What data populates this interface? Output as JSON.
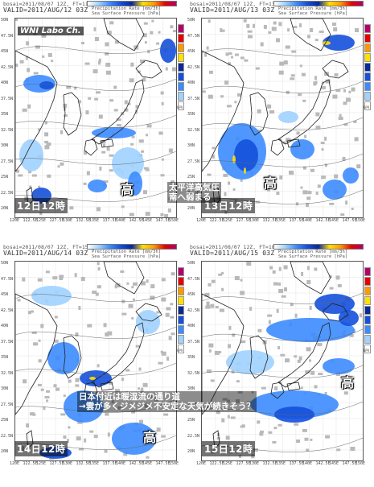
{
  "header": {
    "colorbar_title": "Precipitation Rate [mm/3h]",
    "contour_title": "Sea Surface Pressure [hPa]",
    "gpv": "GPV"
  },
  "logo": "WNI Labo Ch.",
  "axis": {
    "lat_ticks": [
      "50N",
      "47.5N",
      "45N",
      "42.5N",
      "40N",
      "37.5N",
      "35N",
      "32.5N",
      "30N",
      "27.5N",
      "25N",
      "22.5N",
      "20N"
    ],
    "lon_ticks": [
      "120E",
      "122.5E",
      "125E",
      "127.5E",
      "130E",
      "132.5E",
      "135E",
      "137.5E",
      "140E",
      "142.5E",
      "145E",
      "147.5E",
      "150E"
    ]
  },
  "legend": {
    "colors": [
      "#ffffff",
      "#a0d2ff",
      "#3c8cff",
      "#1450dc",
      "#0a2896",
      "#ffe000",
      "#ff9900",
      "#e60000",
      "#b40068"
    ]
  },
  "panels": [
    {
      "model_line": "bosai=2011/08/07 12Z, FT=111",
      "valid": "VALID=2011/AUG/12 03Z",
      "date_label": "12日12時",
      "high_label": "高"
    },
    {
      "model_line": "bosai=2011/08/07 12Z, FT=135",
      "valid": "VALID=2011/AUG/13 03Z",
      "date_label": "13日12時",
      "high_label": "高",
      "annotation": [
        "太平洋高気圧",
        "南へ弱まる"
      ]
    },
    {
      "model_line": "bosai=2011/08/07 12Z, FT=159",
      "valid": "VALID=2011/AUG/14 03Z",
      "date_label": "14日12時",
      "high_label": "高",
      "annotation": [
        "日本付近は暖湿流の通り道",
        "→雲が多くジメジメ不安定な天気が続きそう？"
      ]
    },
    {
      "model_line": "bosai=2011/08/07 12Z, FT=183",
      "valid": "VALID=2011/AUG/15 03Z",
      "date_label": "15日12時",
      "high_label": "高"
    }
  ]
}
